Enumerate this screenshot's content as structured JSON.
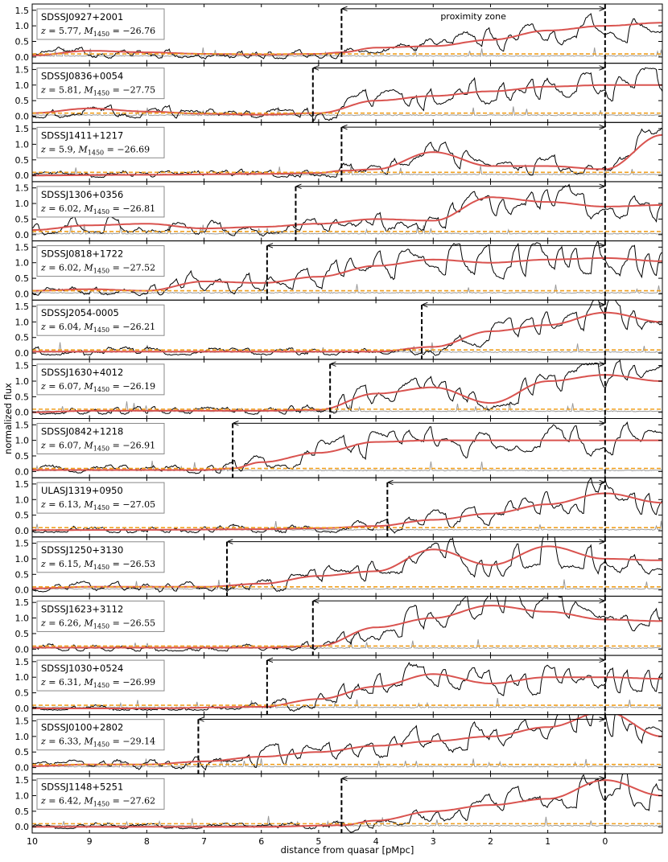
{
  "chart_data": {
    "type": "line",
    "xlabel": "distance from quasar [pMpc]",
    "ylabel": "normalized flux",
    "xlim": [
      10,
      -1
    ],
    "x_ticks": [
      10,
      9,
      8,
      7,
      6,
      5,
      4,
      3,
      2,
      1,
      0
    ],
    "ylim": [
      -0.2,
      1.7
    ],
    "y_ticks": [
      "0.0",
      "0.5",
      "1.0",
      "1.5"
    ],
    "y_tick_values": [
      0.0,
      0.5,
      1.0,
      1.5
    ],
    "annotation": "proximity zone",
    "colors": {
      "spectrum": "#000000",
      "error": "#9a9a9a",
      "smoothed": "#d9534f",
      "threshold": "#f0a020",
      "boundary": "#000000"
    },
    "panels": [
      {
        "name": "SDSSJ0927+2001",
        "z": "5.77",
        "m1450": "−26.76",
        "rp": 4.6,
        "smooth": [
          [
            10,
            0.05
          ],
          [
            9,
            0.2
          ],
          [
            8,
            0.15
          ],
          [
            7,
            0.1
          ],
          [
            6,
            0.08
          ],
          [
            5,
            0.1
          ],
          [
            4.6,
            0.15
          ],
          [
            4,
            0.3
          ],
          [
            3,
            0.35
          ],
          [
            2,
            0.55
          ],
          [
            1,
            0.85
          ],
          [
            0,
            1.0
          ],
          [
            -1,
            1.1
          ]
        ]
      },
      {
        "name": "SDSSJ0836+0054",
        "z": "5.81",
        "m1450": "−27.75",
        "rp": 5.1,
        "smooth": [
          [
            10,
            0.1
          ],
          [
            9,
            0.25
          ],
          [
            8,
            0.15
          ],
          [
            7,
            0.08
          ],
          [
            6,
            0.05
          ],
          [
            5,
            0.1
          ],
          [
            4,
            0.5
          ],
          [
            3,
            0.65
          ],
          [
            2,
            0.8
          ],
          [
            1,
            0.95
          ],
          [
            0,
            1.0
          ],
          [
            -1,
            1.0
          ]
        ]
      },
      {
        "name": "SDSSJ1411+1217",
        "z": "5.9",
        "m1450": "−26.69",
        "rp": 4.6,
        "smooth": [
          [
            10,
            0.0
          ],
          [
            8,
            0.02
          ],
          [
            6,
            0.05
          ],
          [
            5,
            0.08
          ],
          [
            4.6,
            0.15
          ],
          [
            4,
            0.2
          ],
          [
            3,
            0.75
          ],
          [
            2,
            0.3
          ],
          [
            1,
            0.3
          ],
          [
            0,
            0.2
          ],
          [
            -1,
            1.3
          ]
        ]
      },
      {
        "name": "SDSSJ1306+0356",
        "z": "6.02",
        "m1450": "−26.81",
        "rp": 5.4,
        "smooth": [
          [
            10,
            0.15
          ],
          [
            9,
            0.3
          ],
          [
            8,
            0.35
          ],
          [
            7,
            0.2
          ],
          [
            6,
            0.25
          ],
          [
            5,
            0.35
          ],
          [
            4,
            0.5
          ],
          [
            3,
            0.45
          ],
          [
            2,
            1.2
          ],
          [
            1,
            1.05
          ],
          [
            0,
            0.9
          ],
          [
            -1,
            0.95
          ]
        ]
      },
      {
        "name": "SDSSJ0818+1722",
        "z": "6.02",
        "m1450": "−27.52",
        "rp": 5.9,
        "smooth": [
          [
            10,
            0.1
          ],
          [
            9,
            0.15
          ],
          [
            8,
            0.1
          ],
          [
            7,
            0.4
          ],
          [
            6,
            0.35
          ],
          [
            5,
            0.55
          ],
          [
            4,
            0.9
          ],
          [
            3,
            1.1
          ],
          [
            2,
            1.0
          ],
          [
            1,
            1.1
          ],
          [
            0,
            1.15
          ],
          [
            -1,
            1.05
          ]
        ]
      },
      {
        "name": "SDSSJ2054-0005",
        "z": "6.04",
        "m1450": "−26.21",
        "rp": 3.2,
        "smooth": [
          [
            10,
            0.05
          ],
          [
            9,
            0.05
          ],
          [
            8,
            0.05
          ],
          [
            7,
            0.05
          ],
          [
            6,
            0.05
          ],
          [
            5,
            0.05
          ],
          [
            4,
            0.05
          ],
          [
            3,
            0.2
          ],
          [
            2,
            0.7
          ],
          [
            1,
            0.9
          ],
          [
            0,
            1.3
          ],
          [
            -1,
            1.0
          ]
        ]
      },
      {
        "name": "SDSSJ1630+4012",
        "z": "6.07",
        "m1450": "−26.19",
        "rp": 4.8,
        "smooth": [
          [
            10,
            0.0
          ],
          [
            9,
            0.05
          ],
          [
            8,
            0.05
          ],
          [
            7,
            0.05
          ],
          [
            6,
            0.05
          ],
          [
            5,
            0.08
          ],
          [
            4,
            0.6
          ],
          [
            3,
            0.8
          ],
          [
            2,
            0.3
          ],
          [
            1,
            1.0
          ],
          [
            0,
            1.2
          ],
          [
            -1,
            1.0
          ]
        ]
      },
      {
        "name": "SDSSJ0842+1218",
        "z": "6.07",
        "m1450": "−26.91",
        "rp": 6.5,
        "smooth": [
          [
            10,
            0.05
          ],
          [
            9,
            0.05
          ],
          [
            8,
            0.05
          ],
          [
            7,
            0.05
          ],
          [
            6.5,
            0.1
          ],
          [
            6,
            0.3
          ],
          [
            5,
            0.6
          ],
          [
            4,
            0.95
          ],
          [
            3,
            1.0
          ],
          [
            2,
            1.0
          ],
          [
            1,
            1.0
          ],
          [
            0,
            1.0
          ],
          [
            -1,
            1.0
          ]
        ]
      },
      {
        "name": "ULASJ1319+0950",
        "z": "6.13",
        "m1450": "−27.05",
        "rp": 3.8,
        "smooth": [
          [
            10,
            0.02
          ],
          [
            8,
            0.03
          ],
          [
            6,
            0.05
          ],
          [
            5,
            0.08
          ],
          [
            4,
            0.15
          ],
          [
            3,
            0.35
          ],
          [
            2,
            0.55
          ],
          [
            1,
            0.85
          ],
          [
            0,
            1.2
          ],
          [
            -1,
            0.9
          ]
        ]
      },
      {
        "name": "SDSSJ1250+3130",
        "z": "6.15",
        "m1450": "−26.53",
        "rp": 6.6,
        "smooth": [
          [
            10,
            0.05
          ],
          [
            9,
            0.1
          ],
          [
            8,
            0.1
          ],
          [
            7,
            0.1
          ],
          [
            6,
            0.2
          ],
          [
            5,
            0.45
          ],
          [
            4,
            0.6
          ],
          [
            3,
            1.3
          ],
          [
            2,
            0.8
          ],
          [
            1,
            1.4
          ],
          [
            0,
            1.0
          ],
          [
            -1,
            0.95
          ]
        ]
      },
      {
        "name": "SDSSJ1623+3112",
        "z": "6.26",
        "m1450": "−26.55",
        "rp": 5.1,
        "smooth": [
          [
            10,
            0.05
          ],
          [
            8,
            0.05
          ],
          [
            6,
            0.05
          ],
          [
            5,
            0.1
          ],
          [
            4,
            0.7
          ],
          [
            3,
            1.0
          ],
          [
            2,
            1.4
          ],
          [
            1,
            1.2
          ],
          [
            0,
            0.95
          ],
          [
            -1,
            0.9
          ]
        ]
      },
      {
        "name": "SDSSJ1030+0524",
        "z": "6.31",
        "m1450": "−26.99",
        "rp": 5.9,
        "smooth": [
          [
            10,
            0.0
          ],
          [
            8,
            0.0
          ],
          [
            6,
            0.05
          ],
          [
            5,
            0.3
          ],
          [
            4,
            0.7
          ],
          [
            3,
            1.1
          ],
          [
            2,
            0.8
          ],
          [
            1,
            1.0
          ],
          [
            0,
            1.0
          ],
          [
            -1,
            0.95
          ]
        ]
      },
      {
        "name": "SDSSJ0100+2802",
        "z": "6.33",
        "m1450": "−29.14",
        "rp": 7.1,
        "smooth": [
          [
            10,
            0.05
          ],
          [
            9,
            0.1
          ],
          [
            8,
            0.1
          ],
          [
            7,
            0.2
          ],
          [
            6,
            0.35
          ],
          [
            5,
            0.5
          ],
          [
            4,
            0.7
          ],
          [
            3,
            0.85
          ],
          [
            2,
            1.0
          ],
          [
            1,
            1.3
          ],
          [
            0,
            1.8
          ],
          [
            -1,
            1.0
          ]
        ]
      },
      {
        "name": "SDSSJ1148+5251",
        "z": "6.42",
        "m1450": "−27.62",
        "rp": 4.6,
        "smooth": [
          [
            10,
            0.0
          ],
          [
            8,
            0.0
          ],
          [
            6,
            0.0
          ],
          [
            4.6,
            0.05
          ],
          [
            4,
            0.2
          ],
          [
            3,
            0.5
          ],
          [
            2,
            0.7
          ],
          [
            1,
            0.9
          ],
          [
            0,
            1.5
          ],
          [
            -1,
            1.0
          ]
        ]
      }
    ]
  }
}
